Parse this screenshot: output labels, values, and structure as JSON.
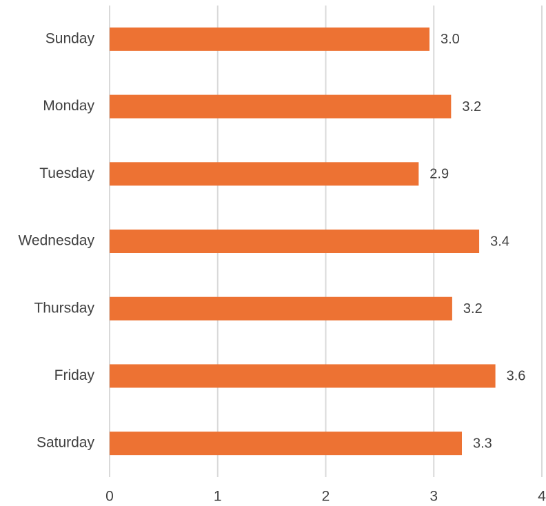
{
  "chart_data": {
    "type": "barh",
    "categories": [
      "Sunday",
      "Monday",
      "Tuesday",
      "Wednesday",
      "Thursday",
      "Friday",
      "Saturday"
    ],
    "values": [
      2.96,
      3.16,
      2.86,
      3.42,
      3.17,
      3.57,
      3.26
    ],
    "value_labels": [
      "3.0",
      "3.2",
      "2.9",
      "3.4",
      "3.2",
      "3.6",
      "3.3"
    ],
    "color": "#ed7233",
    "xlim": [
      0,
      4
    ],
    "xticks": [
      0,
      1,
      2,
      3,
      4
    ],
    "grid": true
  }
}
